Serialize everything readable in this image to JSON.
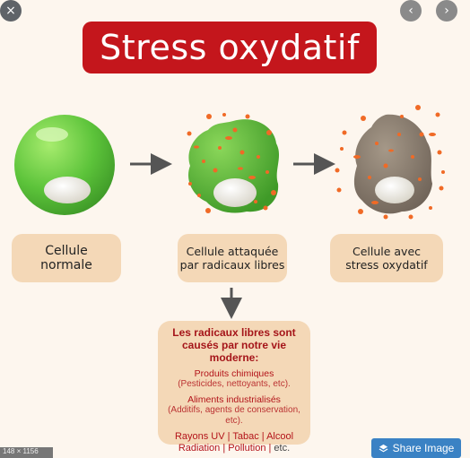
{
  "controls": {
    "close_icon": "×",
    "prev_icon": "‹",
    "next_icon": "›",
    "share_label": "Share Image",
    "dimensions_text": "148 × 1156"
  },
  "title": "Stress oxydatif",
  "cells": [
    {
      "label": "Cellule\nnormale"
    },
    {
      "label": "Cellule attaquée\npar radicaux libres"
    },
    {
      "label": "Cellule avec\nstress oxydatif"
    }
  ],
  "info": {
    "heading": "Les radicaux libres sont\ncausés par notre vie moderne:",
    "item1": "Produits chimiques",
    "item1_sub": "(Pesticides, nettoyants, etc).",
    "item2": "Aliments industrialisés",
    "item2_sub": "(Additifs, agents de conservation, etc).",
    "item3_line1": "Rayons UV  |  Tabac  |  Alcool",
    "item3_line2": "Radiation  |  Pollution |",
    "item3_etc": " etc."
  },
  "colors": {
    "banner": "#c4161c",
    "label_bg": "#f4d8b7",
    "cell_green": "#5cc33a",
    "cell_gray": "#8b7d70",
    "radical_orange": "#f06a26"
  }
}
